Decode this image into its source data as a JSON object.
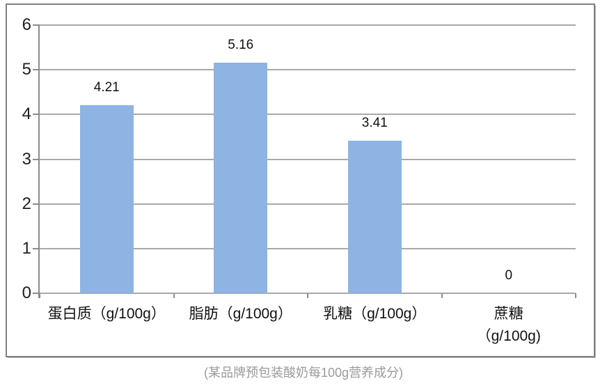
{
  "chart_data": {
    "type": "bar",
    "title": "",
    "xlabel": "",
    "ylabel": "",
    "categories": [
      "蛋白质（g/100g）",
      "脂肪（g/100g）",
      "乳糖（g/100g）",
      "蔗糖\n（g/100g)"
    ],
    "values": [
      4.21,
      5.16,
      3.41,
      0
    ],
    "value_labels": [
      "4.21",
      "5.16",
      "3.41",
      "0"
    ],
    "ylim": [
      0,
      6
    ],
    "yticks": [
      0,
      1,
      2,
      3,
      4,
      5,
      6
    ],
    "grid": true,
    "legend": "none",
    "caption": "(某品牌预包装酸奶每100g营养成分)",
    "colors": {
      "bar": "#8DB4E2",
      "gridline": "#a9a9a9",
      "axis": "#8c8c8c",
      "frame_border": "#7f7f7f",
      "tick_text": "#1f1f1f",
      "value_text": "#111111",
      "category_text": "#111111",
      "caption_text": "#9a9a9a"
    }
  }
}
